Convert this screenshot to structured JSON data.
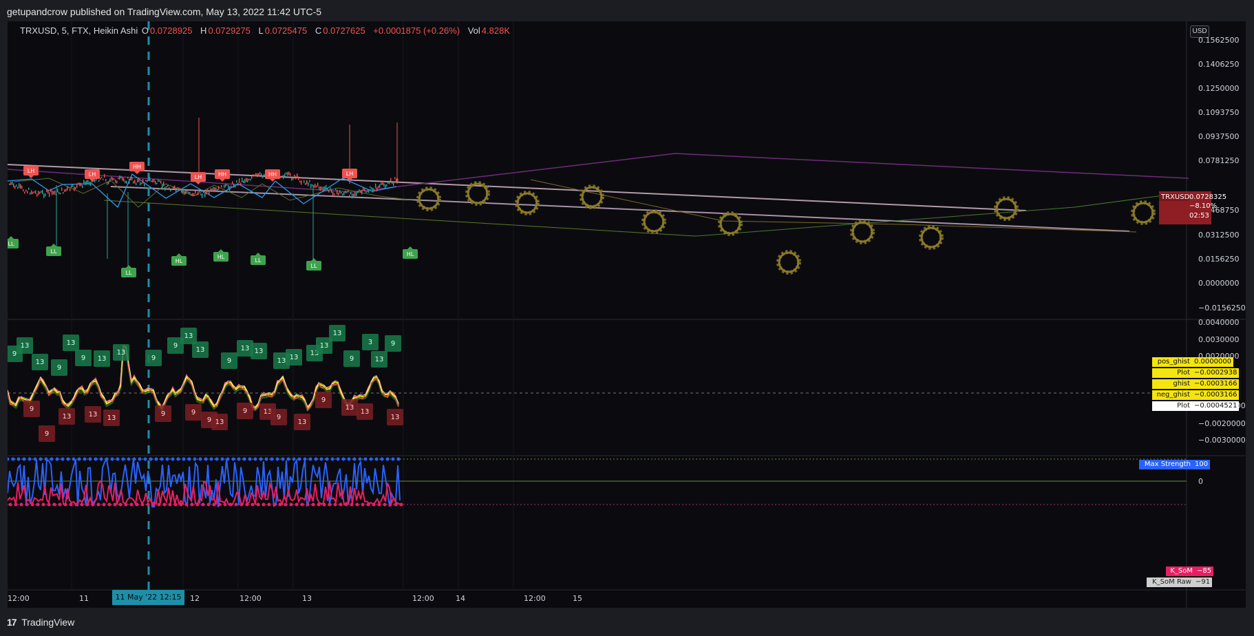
{
  "header": {
    "published": "getupandcrow published on TradingView.com, May 13, 2022 11:42 UTC-5"
  },
  "legend": {
    "symbol": "TRXUSD, 5, FTX, Heikin Ashi",
    "o_label": "O",
    "o_value": "0.0728925",
    "h_label": "H",
    "h_value": "0.0729275",
    "l_label": "L",
    "l_value": "0.0725475",
    "c_label": "C",
    "c_value": "0.0727625",
    "change": "+0.0001875 (+0.26%)",
    "vol_label": "Vol",
    "vol_value": "4.828K"
  },
  "currency_button": "USD",
  "price_axis": [
    "0.1562500",
    "0.1406250",
    "0.1250000",
    "0.1093750",
    "0.0937500",
    "0.0781250",
    "0.0468750",
    "0.0312500",
    "0.0156250",
    "0.0000000",
    "−0.0156250"
  ],
  "osc_axis": [
    "0.0040000",
    "0.0030000",
    "0.0020000",
    "−0.0010000",
    "−0.0020000",
    "−0.0030000"
  ],
  "strength_axis": [
    "0"
  ],
  "time_axis": [
    "12:00",
    "11",
    "12",
    "12:00",
    "13",
    "12:00",
    "14",
    "12:00",
    "15"
  ],
  "time_cursor": "11 May '22   12:15",
  "price_tag": {
    "symbol": "TRXUSD",
    "price": "0.0728325",
    "change": "−8.10%",
    "countdown": "02:53"
  },
  "osc_labels": [
    {
      "name": "pos_ghist",
      "value": "0.0000000"
    },
    {
      "name": "Plot",
      "value": "−0.0002938"
    },
    {
      "name": "ghist",
      "value": "−0.0003166"
    },
    {
      "name": "neg_ghist",
      "value": "−0.0003166"
    },
    {
      "name": "Plot",
      "value": "−0.0004521"
    }
  ],
  "strength_labels": [
    {
      "name": "Max Strength",
      "value": "100"
    },
    {
      "name": "K_SoM",
      "value": "−85"
    },
    {
      "name": "K_SoM Raw",
      "value": "−91"
    }
  ],
  "pivot_labels": {
    "tops": [
      "LH",
      "LH",
      "HH",
      "LH",
      "HH",
      "HH",
      "LH"
    ],
    "bottoms": [
      "LL",
      "LL",
      "LL",
      "HL",
      "HL",
      "LL",
      "LL",
      "HL"
    ]
  },
  "footer": {
    "logo": "17",
    "brand": "TradingView"
  },
  "colors": {
    "bear": "#ef5350",
    "bull": "#26a69a",
    "accent": "#1e8fa8",
    "gold": "#8a7a2a"
  }
}
